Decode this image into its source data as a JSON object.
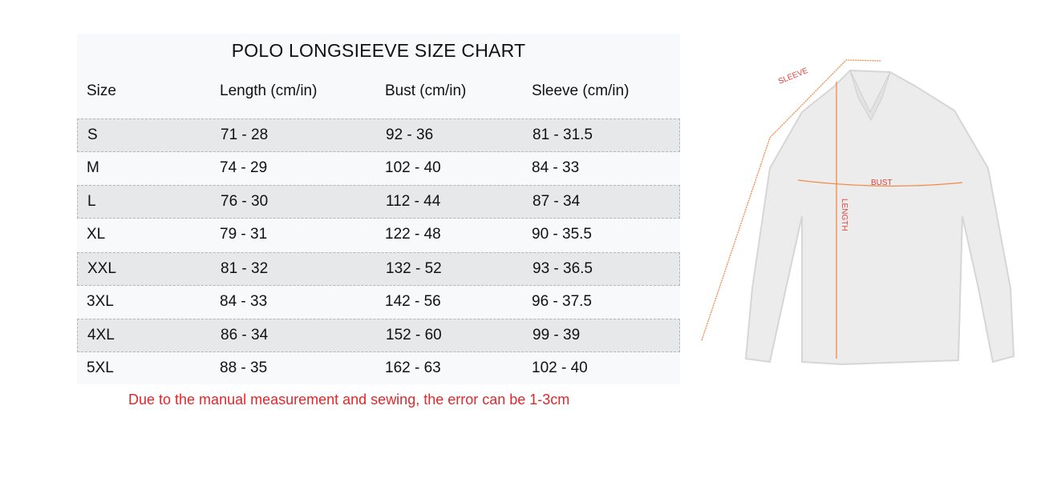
{
  "title": "POLO LONGSIEEVE SIZE CHART",
  "columns": [
    "Size",
    "Length (cm/in)",
    "Bust (cm/in)",
    "Sleeve (cm/in)"
  ],
  "rows": [
    [
      "S",
      "71 - 28",
      "92 - 36",
      "81 - 31.5"
    ],
    [
      "M",
      "74 - 29",
      "102 - 40",
      "84 - 33"
    ],
    [
      "L",
      "76 - 30",
      "112 - 44",
      "87 - 34"
    ],
    [
      "XL",
      "79 - 31",
      "122 - 48",
      "90 - 35.5"
    ],
    [
      "XXL",
      "81 - 32",
      "132 - 52",
      "93 - 36.5"
    ],
    [
      "3XL",
      "84 - 33",
      "142 - 56",
      "96 - 37.5"
    ],
    [
      "4XL",
      "86 - 34",
      "152 - 60",
      "99 - 39"
    ],
    [
      "5XL",
      "88 - 35",
      "162 - 63",
      "102 - 40"
    ]
  ],
  "note": "Due to the manual measurement and sewing, the error can be 1-3cm",
  "diagram": {
    "sleeve_label": "SLEEVE",
    "bust_label": "BUST",
    "length_label": "LENGTH"
  },
  "colors": {
    "note": "#e3262a",
    "measure_line": "#f08a4b",
    "label": "#e2443f"
  }
}
